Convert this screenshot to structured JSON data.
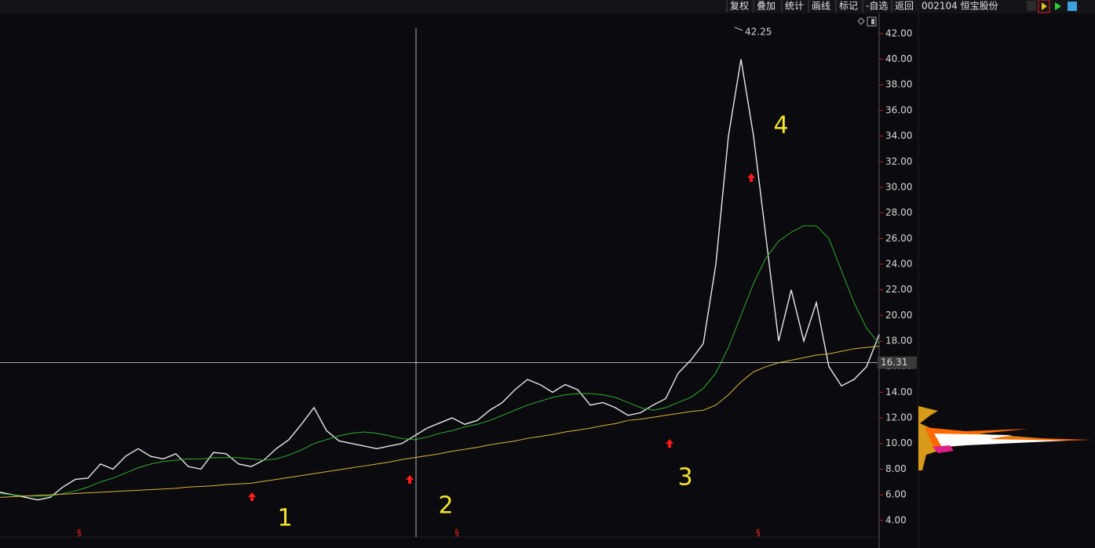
{
  "toolbar": {
    "buttons": [
      "复权",
      "叠加",
      "统计",
      "画线",
      "标记",
      "-自选",
      "返回"
    ],
    "stock": "002104 恒宝股份"
  },
  "chart_data": {
    "type": "line",
    "categories": [
      null,
      null,
      null,
      null,
      null,
      null,
      null,
      null,
      null,
      null,
      null,
      null,
      null,
      null,
      null,
      null,
      null,
      null,
      null,
      null,
      null,
      null,
      null,
      null,
      null,
      null,
      null,
      null,
      null,
      null,
      null,
      null,
      null,
      null,
      null,
      null,
      null,
      null,
      null,
      null,
      null,
      null,
      null,
      null,
      null,
      null,
      null,
      null,
      null,
      null,
      null,
      null,
      null,
      null,
      null,
      null,
      null,
      null,
      null,
      null,
      null,
      null,
      null,
      null,
      null,
      null,
      null,
      null,
      null,
      null,
      null
    ],
    "series": [
      {
        "color": "#e8e8e8",
        "values": [
          6.2,
          6.0,
          5.8,
          5.6,
          5.8,
          6.6,
          7.2,
          7.3,
          8.4,
          8.0,
          9.0,
          9.6,
          9.0,
          8.8,
          9.2,
          8.2,
          8.0,
          9.3,
          9.2,
          8.4,
          8.2,
          8.7,
          9.6,
          10.3,
          11.5,
          12.8,
          11.0,
          10.2,
          10.0,
          9.8,
          9.6,
          9.8,
          10.0,
          10.6,
          11.2,
          11.6,
          12.0,
          11.5,
          11.8,
          12.6,
          13.2,
          14.2,
          15.0,
          14.6,
          14.0,
          14.6,
          14.2,
          13.0,
          13.2,
          12.8,
          12.2,
          12.4,
          13.0,
          13.5,
          15.5,
          16.5,
          17.8,
          24,
          34,
          40,
          34,
          26,
          18,
          22,
          18,
          21,
          16,
          14.5,
          15,
          16,
          18.5
        ]
      },
      {
        "color": "#2fae2f",
        "values": [
          6.1,
          6.0,
          5.9,
          5.9,
          5.9,
          6.1,
          6.3,
          6.6,
          7.0,
          7.3,
          7.7,
          8.1,
          8.4,
          8.6,
          8.7,
          8.8,
          8.8,
          8.9,
          8.9,
          8.9,
          8.8,
          8.7,
          8.8,
          9.1,
          9.5,
          10.0,
          10.3,
          10.6,
          10.8,
          10.9,
          10.8,
          10.6,
          10.4,
          10.3,
          10.5,
          10.8,
          11.0,
          11.3,
          11.5,
          11.8,
          12.2,
          12.6,
          13.0,
          13.3,
          13.6,
          13.8,
          13.9,
          13.9,
          13.8,
          13.6,
          13.2,
          12.8,
          12.6,
          12.8,
          13.2,
          13.6,
          14.3,
          15.5,
          17.5,
          20.0,
          22.5,
          24.5,
          25.8,
          26.5,
          27.0,
          27.0,
          26.0,
          23.5,
          21.0,
          19.0,
          17.8
        ]
      },
      {
        "color": "#d9b83a",
        "values": [
          5.8,
          5.85,
          5.9,
          5.95,
          6.0,
          6.05,
          6.1,
          6.15,
          6.2,
          6.25,
          6.3,
          6.35,
          6.4,
          6.45,
          6.5,
          6.6,
          6.65,
          6.7,
          6.8,
          6.85,
          6.9,
          7.05,
          7.2,
          7.35,
          7.5,
          7.65,
          7.8,
          7.95,
          8.1,
          8.25,
          8.4,
          8.55,
          8.75,
          8.9,
          9.05,
          9.2,
          9.4,
          9.55,
          9.7,
          9.9,
          10.05,
          10.2,
          10.4,
          10.55,
          10.7,
          10.9,
          11.05,
          11.2,
          11.4,
          11.55,
          11.8,
          11.9,
          12.05,
          12.2,
          12.35,
          12.5,
          12.6,
          13.0,
          13.8,
          14.8,
          15.6,
          16.0,
          16.3,
          16.5,
          16.7,
          16.9,
          17.0,
          17.2,
          17.4,
          17.5,
          17.6
        ]
      }
    ],
    "ylim": [
      2.7,
      43.4
    ],
    "yticks": [
      {
        "value": 4,
        "label": "4.00"
      },
      {
        "value": 6,
        "label": "6.00"
      },
      {
        "value": 8,
        "label": "8.00"
      },
      {
        "value": 10,
        "label": "10.00"
      },
      {
        "value": 12,
        "label": "12.00"
      },
      {
        "value": 14,
        "label": "14.00"
      },
      {
        "value": 16,
        "label": "16.00"
      },
      {
        "value": 18,
        "label": "18.00"
      },
      {
        "value": 20,
        "label": "20.00"
      },
      {
        "value": 22,
        "label": "22.00"
      },
      {
        "value": 24,
        "label": "24.00"
      },
      {
        "value": 26,
        "label": "26.00"
      },
      {
        "value": 28,
        "label": "28.00"
      },
      {
        "value": 30,
        "label": "30.00"
      },
      {
        "value": 32,
        "label": "32.00"
      },
      {
        "value": 34,
        "label": "34.00"
      },
      {
        "value": 36,
        "label": "36.00"
      },
      {
        "value": 38,
        "label": "38.00"
      },
      {
        "value": 40,
        "label": "40.00"
      },
      {
        "value": 42,
        "label": "42.00"
      }
    ],
    "high": 42.25,
    "crosshair": 16.31,
    "annotations": [
      "1",
      "2",
      "3",
      "4",
      "§",
      "§",
      "§"
    ]
  }
}
